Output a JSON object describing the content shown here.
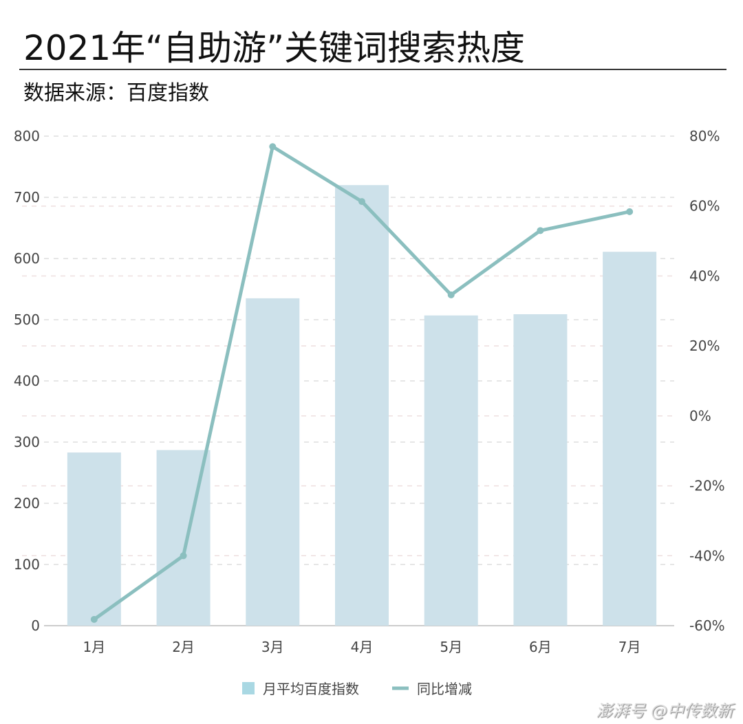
{
  "title": "2021年“自助游”关键词搜索热度",
  "subtitle": "数据来源：百度指数",
  "watermark": "澎湃号 @中传数新",
  "chart_data": {
    "type": "bar",
    "categories": [
      "1月",
      "2月",
      "3月",
      "4月",
      "5月",
      "6月",
      "7月"
    ],
    "series": [
      {
        "name": "月平均百度指数",
        "type": "bar",
        "axis": "left",
        "color": "#cde1ea",
        "values": [
          283,
          287,
          535,
          720,
          507,
          509,
          611
        ]
      },
      {
        "name": "同比增减",
        "type": "line",
        "axis": "right",
        "color": "#8bbfbf",
        "values": [
          -58.2,
          -40.0,
          77.0,
          61.3,
          34.6,
          53.0,
          58.4
        ]
      }
    ],
    "left_axis": {
      "ylim": [
        0,
        800
      ],
      "ticks": [
        "0",
        "100",
        "200",
        "300",
        "400",
        "500",
        "600",
        "700",
        "800"
      ]
    },
    "right_axis": {
      "ylim": [
        -60,
        80
      ],
      "ticks": [
        "-60%",
        "-40%",
        "-20%",
        "0%",
        "20%",
        "40%",
        "60%",
        "80%"
      ]
    },
    "grid": true,
    "legend": "bottom-center",
    "legend_color_bar": "#a9d8e3"
  }
}
